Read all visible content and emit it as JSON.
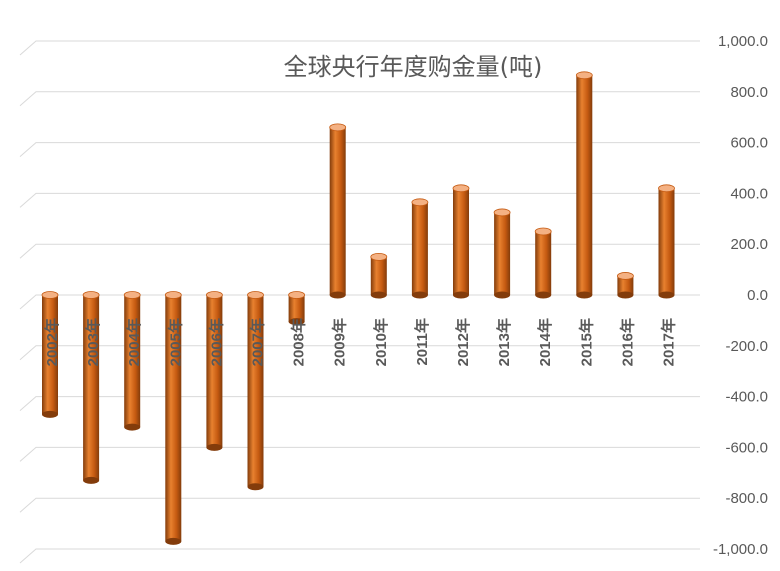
{
  "chart_data": {
    "type": "bar",
    "title": "全球央行年度购金量(吨)",
    "categories": [
      "2002年",
      "2003年",
      "2004年",
      "2005年",
      "2006年",
      "2007年",
      "2008年",
      "2009年",
      "2010年",
      "2011年",
      "2012年",
      "2013年",
      "2014年",
      "2015年",
      "2016年",
      "2017年"
    ],
    "values": [
      -470,
      -730,
      -520,
      -970,
      -600,
      -755,
      -105,
      660,
      150,
      365,
      420,
      325,
      250,
      865,
      75,
      420
    ],
    "ylim": [
      -1000,
      1000
    ],
    "yticks": [
      1000,
      800,
      600,
      400,
      200,
      0,
      -200,
      -400,
      -600,
      -800,
      -1000
    ],
    "ytick_labels": [
      "1,000.0",
      "800.0",
      "600.0",
      "400.0",
      "200.0",
      "0.0",
      "-200.0",
      "-400.0",
      "-600.0",
      "-800.0",
      "-1,000.0"
    ],
    "xlabel": "",
    "ylabel": "",
    "grid": true,
    "y_axis_position": "right",
    "bar_style": "3d-cylinder",
    "colors": {
      "bar_main": "#c55a11",
      "bar_light": "#e8812f",
      "bar_dark": "#833c0b",
      "bar_top": "#f4b183",
      "grid": "#d9d9d9",
      "text": "#595959"
    }
  }
}
